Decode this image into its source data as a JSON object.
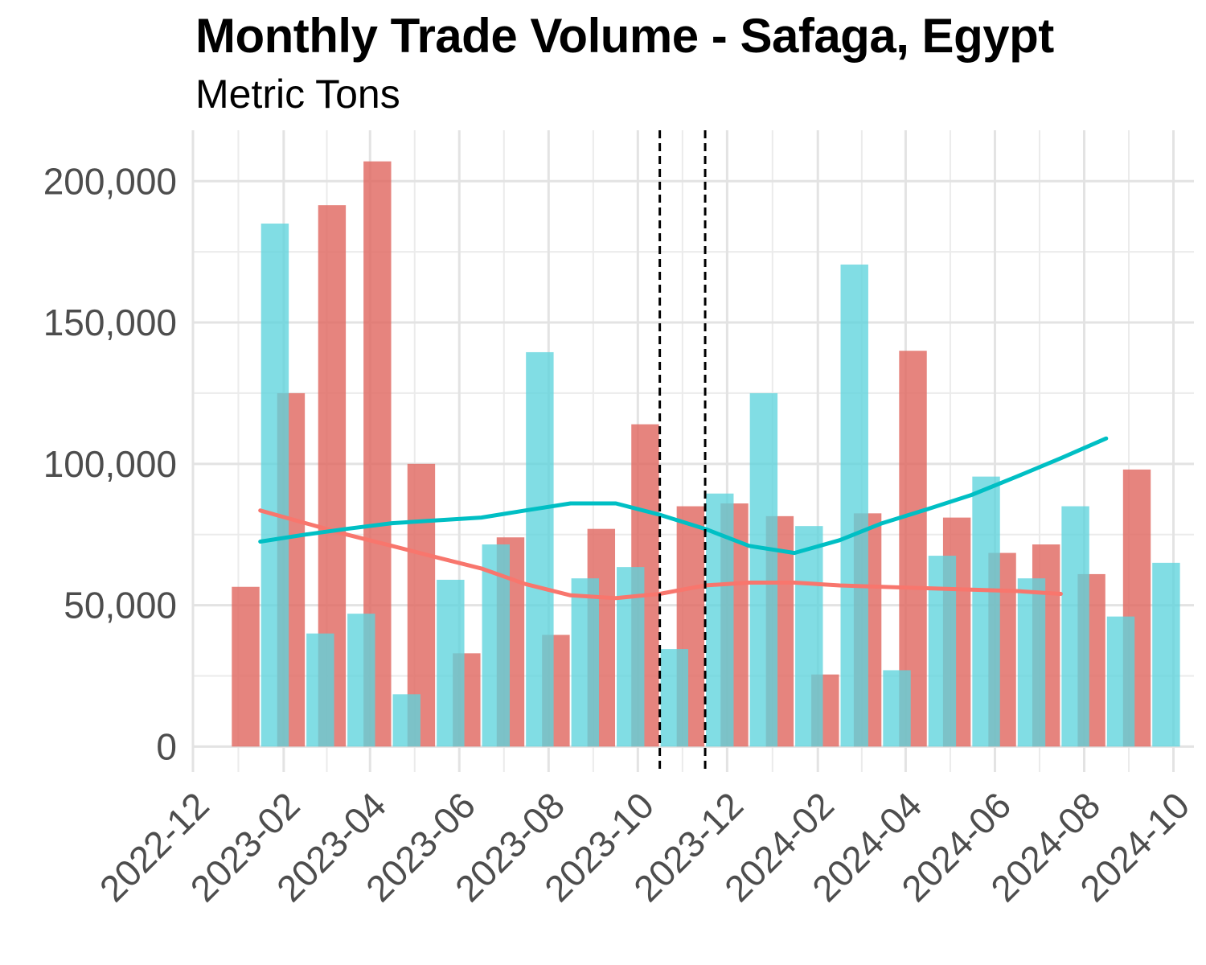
{
  "chart_data": {
    "type": "bar",
    "title": "Monthly Trade Volume - Safaga, Egypt",
    "subtitle": "Metric Tons",
    "xlabel": "",
    "ylabel": "",
    "ylim": [
      -9000,
      218000
    ],
    "xlim": [
      "2022-12-01",
      "2024-10-15"
    ],
    "yticks": [
      0,
      50000,
      100000,
      150000,
      200000
    ],
    "ytick_labels": [
      "0",
      "50,000",
      "100,000",
      "150,000",
      "200,000"
    ],
    "xticks": [
      "2022-12-01",
      "2023-02-01",
      "2023-04-01",
      "2023-06-01",
      "2023-08-01",
      "2023-10-01",
      "2023-12-01",
      "2024-02-01",
      "2024-04-01",
      "2024-06-01",
      "2024-08-01",
      "2024-10-01"
    ],
    "xtick_labels": [
      "2022-12",
      "2023-02",
      "2023-04",
      "2023-06",
      "2023-08",
      "2023-10",
      "2023-12",
      "2024-02",
      "2024-04",
      "2024-06",
      "2024-08",
      "2024-10"
    ],
    "grid": true,
    "legend": "none",
    "months": [
      "2023-01",
      "2023-02",
      "2023-03",
      "2023-04",
      "2023-05",
      "2023-06",
      "2023-07",
      "2023-08",
      "2023-09",
      "2023-10",
      "2023-11",
      "2023-12",
      "2024-01",
      "2024-02",
      "2024-03",
      "2024-04",
      "2024-05",
      "2024-06",
      "2024-07",
      "2024-08",
      "2024-09"
    ],
    "series": [
      {
        "color": "#e06961",
        "values": [
          56500,
          125000,
          191500,
          207000,
          100000,
          33000,
          74000,
          39500,
          77000,
          114000,
          85000,
          86000,
          81500,
          25500,
          82500,
          140000,
          81000,
          68500,
          71500,
          61000,
          98000
        ],
        "trend": [
          83500,
          79000,
          75000,
          71000,
          67000,
          63000,
          57500,
          53500,
          52500,
          54000,
          57000,
          58000,
          58000,
          57000,
          56500,
          56000,
          55500,
          55000,
          54000
        ]
      },
      {
        "color": "#5ed3dc",
        "values": [
          185000,
          40000,
          47000,
          18500,
          59000,
          71500,
          139500,
          59500,
          63500,
          34500,
          89500,
          125000,
          78000,
          170500,
          27000,
          67500,
          95500,
          59500,
          85000,
          46000,
          65000
        ],
        "trend": [
          72500,
          75000,
          77000,
          79000,
          80000,
          81000,
          83500,
          86000,
          86000,
          82000,
          77000,
          71000,
          68500,
          73000,
          79000,
          84000,
          89000,
          95500,
          102000,
          109000
        ]
      }
    ],
    "trend_colors": [
      "#f8766d",
      "#00bfc4"
    ],
    "vlines": [
      "2023-10-16",
      "2023-11-16"
    ]
  }
}
